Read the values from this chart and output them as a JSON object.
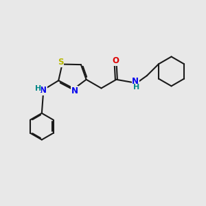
{
  "bg_color": "#e8e8e8",
  "bond_color": "#1a1a1a",
  "S_color": "#b8b800",
  "N_color": "#0000ee",
  "O_color": "#dd0000",
  "H_color": "#008888",
  "lw": 1.5,
  "figsize": [
    3.0,
    3.0
  ],
  "dpi": 100,
  "xlim": [
    0,
    10
  ],
  "ylim": [
    0,
    10
  ]
}
